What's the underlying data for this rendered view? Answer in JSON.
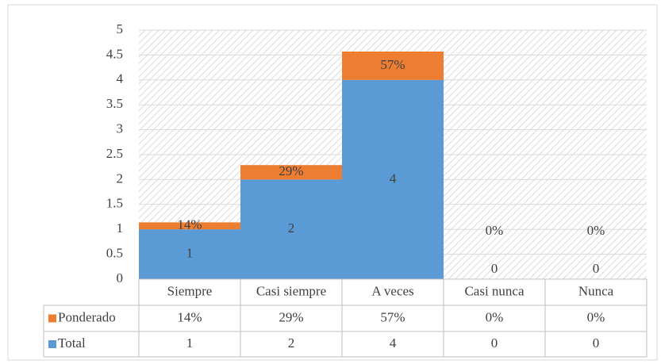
{
  "chart_data": {
    "type": "stacked_bar",
    "categories": [
      "Siempre",
      "Casi siempre",
      "A veces",
      "Casi nunca",
      "Nunca"
    ],
    "series": [
      {
        "name": "Ponderado",
        "color": "#ed7d31",
        "values": [
          0.14,
          0.29,
          0.57,
          0,
          0
        ],
        "value_labels": [
          "14%",
          "29%",
          "57%",
          "0%",
          "0%"
        ]
      },
      {
        "name": "Total",
        "color": "#5b9bd5",
        "values": [
          1,
          2,
          4,
          0,
          0
        ]
      }
    ],
    "ylim": [
      0,
      5
    ],
    "yticks": [
      0,
      0.5,
      1,
      1.5,
      2,
      2.5,
      3,
      3.5,
      4,
      4.5,
      5
    ],
    "grid": true
  }
}
